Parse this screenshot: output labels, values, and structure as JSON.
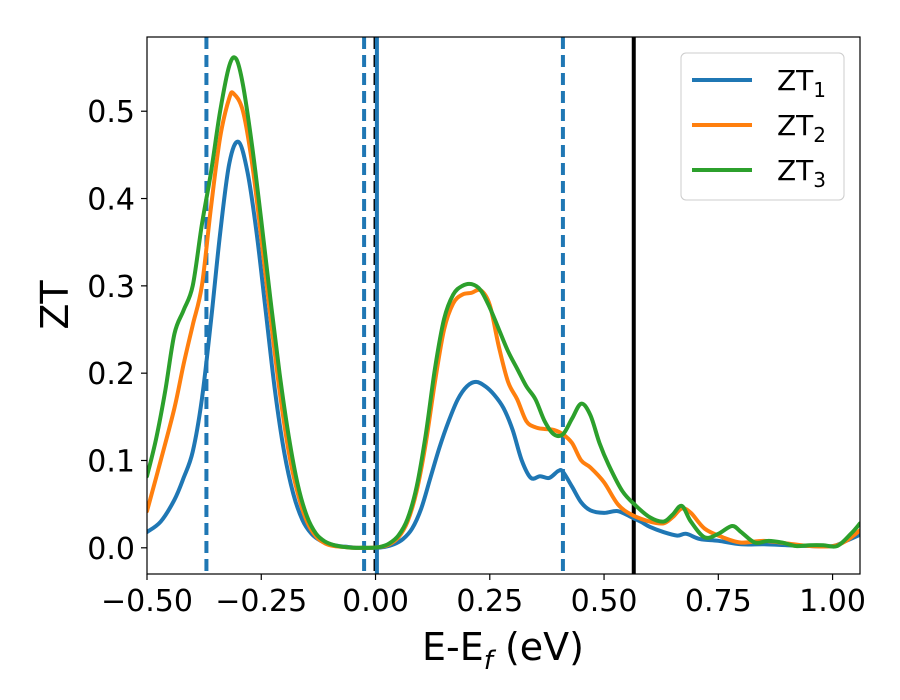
{
  "chart_data": {
    "type": "line",
    "xlabel": "E-E",
    "xlabel_sub": "f",
    "xlabel_unit": " (eV)",
    "ylabel": "ZT",
    "xlim": [
      -0.5,
      1.06
    ],
    "ylim": [
      -0.03,
      0.585
    ],
    "xticks": [
      -0.5,
      -0.25,
      0.0,
      0.25,
      0.5,
      0.75,
      1.0
    ],
    "xtick_labels": [
      "−0.50",
      "−0.25",
      "0.00",
      "0.25",
      "0.50",
      "0.75",
      "1.00"
    ],
    "yticks": [
      0.0,
      0.1,
      0.2,
      0.3,
      0.4,
      0.5
    ],
    "ytick_labels": [
      "0.0",
      "0.1",
      "0.2",
      "0.3",
      "0.4",
      "0.5"
    ],
    "grid": false,
    "legend_position": "top-right",
    "series": [
      {
        "name": "ZT",
        "name_sub": "1",
        "color": "#1f77b4",
        "x": [
          -0.5,
          -0.47,
          -0.44,
          -0.42,
          -0.4,
          -0.38,
          -0.36,
          -0.34,
          -0.32,
          -0.3,
          -0.28,
          -0.26,
          -0.24,
          -0.22,
          -0.2,
          -0.18,
          -0.16,
          -0.14,
          -0.12,
          -0.1,
          -0.08,
          -0.06,
          -0.04,
          -0.02,
          0.0,
          0.02,
          0.04,
          0.06,
          0.08,
          0.1,
          0.12,
          0.14,
          0.16,
          0.18,
          0.2,
          0.22,
          0.24,
          0.26,
          0.28,
          0.3,
          0.32,
          0.34,
          0.36,
          0.38,
          0.4,
          0.41,
          0.43,
          0.45,
          0.47,
          0.5,
          0.53,
          0.56,
          0.58,
          0.6,
          0.63,
          0.66,
          0.68,
          0.71,
          0.75,
          0.8,
          0.85,
          0.9,
          0.95,
          1.0,
          1.03,
          1.06
        ],
        "y": [
          0.018,
          0.03,
          0.055,
          0.08,
          0.11,
          0.17,
          0.26,
          0.36,
          0.44,
          0.465,
          0.43,
          0.36,
          0.27,
          0.18,
          0.11,
          0.062,
          0.032,
          0.016,
          0.008,
          0.004,
          0.002,
          0.001,
          0.0,
          0.0,
          0.0,
          0.001,
          0.004,
          0.01,
          0.022,
          0.045,
          0.08,
          0.115,
          0.145,
          0.17,
          0.185,
          0.19,
          0.185,
          0.175,
          0.16,
          0.135,
          0.1,
          0.08,
          0.082,
          0.08,
          0.088,
          0.087,
          0.07,
          0.052,
          0.043,
          0.04,
          0.042,
          0.035,
          0.03,
          0.024,
          0.018,
          0.014,
          0.016,
          0.01,
          0.008,
          0.004,
          0.004,
          0.003,
          0.002,
          0.002,
          0.008,
          0.015
        ]
      },
      {
        "name": "ZT",
        "name_sub": "2",
        "color": "#ff7f0e",
        "x": [
          -0.5,
          -0.47,
          -0.44,
          -0.42,
          -0.4,
          -0.38,
          -0.36,
          -0.34,
          -0.32,
          -0.31,
          -0.29,
          -0.27,
          -0.25,
          -0.23,
          -0.21,
          -0.19,
          -0.17,
          -0.15,
          -0.13,
          -0.11,
          -0.09,
          -0.07,
          -0.05,
          -0.03,
          -0.01,
          0.01,
          0.03,
          0.05,
          0.07,
          0.09,
          0.11,
          0.13,
          0.15,
          0.17,
          0.19,
          0.21,
          0.23,
          0.25,
          0.27,
          0.29,
          0.31,
          0.33,
          0.35,
          0.37,
          0.39,
          0.41,
          0.43,
          0.45,
          0.47,
          0.5,
          0.53,
          0.56,
          0.6,
          0.63,
          0.65,
          0.67,
          0.69,
          0.72,
          0.76,
          0.8,
          0.85,
          0.9,
          0.95,
          1.0,
          1.03,
          1.06
        ],
        "y": [
          0.042,
          0.1,
          0.16,
          0.21,
          0.255,
          0.3,
          0.39,
          0.47,
          0.515,
          0.52,
          0.5,
          0.44,
          0.355,
          0.265,
          0.18,
          0.11,
          0.062,
          0.03,
          0.013,
          0.005,
          0.002,
          0.001,
          0.0,
          0.0,
          0.0,
          0.001,
          0.004,
          0.012,
          0.03,
          0.065,
          0.12,
          0.19,
          0.25,
          0.28,
          0.29,
          0.292,
          0.295,
          0.278,
          0.23,
          0.19,
          0.17,
          0.145,
          0.138,
          0.136,
          0.135,
          0.13,
          0.12,
          0.1,
          0.092,
          0.075,
          0.05,
          0.038,
          0.03,
          0.028,
          0.035,
          0.045,
          0.04,
          0.022,
          0.012,
          0.006,
          0.008,
          0.005,
          0.002,
          0.002,
          0.008,
          0.02
        ]
      },
      {
        "name": "ZT",
        "name_sub": "3",
        "color": "#2ca02c",
        "x": [
          -0.5,
          -0.48,
          -0.46,
          -0.44,
          -0.42,
          -0.4,
          -0.38,
          -0.36,
          -0.34,
          -0.32,
          -0.305,
          -0.29,
          -0.27,
          -0.25,
          -0.23,
          -0.21,
          -0.19,
          -0.17,
          -0.15,
          -0.13,
          -0.11,
          -0.09,
          -0.07,
          -0.05,
          -0.03,
          -0.01,
          0.01,
          0.03,
          0.05,
          0.07,
          0.09,
          0.11,
          0.13,
          0.15,
          0.17,
          0.19,
          0.21,
          0.23,
          0.25,
          0.27,
          0.29,
          0.31,
          0.33,
          0.35,
          0.37,
          0.39,
          0.41,
          0.43,
          0.45,
          0.47,
          0.49,
          0.51,
          0.54,
          0.57,
          0.6,
          0.63,
          0.65,
          0.67,
          0.69,
          0.72,
          0.75,
          0.78,
          0.8,
          0.83,
          0.86,
          0.89,
          0.92,
          0.95,
          0.98,
          1.01,
          1.04,
          1.06
        ],
        "y": [
          0.082,
          0.125,
          0.18,
          0.245,
          0.272,
          0.3,
          0.37,
          0.43,
          0.5,
          0.552,
          0.56,
          0.53,
          0.46,
          0.375,
          0.285,
          0.2,
          0.128,
          0.072,
          0.036,
          0.016,
          0.007,
          0.003,
          0.001,
          0.0,
          0.0,
          0.0,
          0.001,
          0.005,
          0.014,
          0.033,
          0.07,
          0.13,
          0.205,
          0.262,
          0.29,
          0.3,
          0.302,
          0.295,
          0.275,
          0.25,
          0.225,
          0.205,
          0.185,
          0.17,
          0.145,
          0.13,
          0.13,
          0.148,
          0.165,
          0.152,
          0.12,
          0.095,
          0.065,
          0.048,
          0.035,
          0.03,
          0.038,
          0.048,
          0.03,
          0.012,
          0.016,
          0.025,
          0.018,
          0.006,
          0.008,
          0.006,
          0.002,
          0.003,
          0.003,
          0.002,
          0.016,
          0.028
        ]
      }
    ],
    "vlines": [
      {
        "x": -0.37,
        "style": "dashed",
        "color": "#1f77b4"
      },
      {
        "x": -0.025,
        "style": "dashed",
        "color": "#1f77b4"
      },
      {
        "x": 0.0,
        "style": "dashed",
        "color": "#000000"
      },
      {
        "x": 0.003,
        "style": "solid",
        "color": "#1f77b4"
      },
      {
        "x": 0.41,
        "style": "dashed",
        "color": "#1f77b4"
      },
      {
        "x": 0.565,
        "style": "solid",
        "color": "#000000"
      }
    ]
  }
}
